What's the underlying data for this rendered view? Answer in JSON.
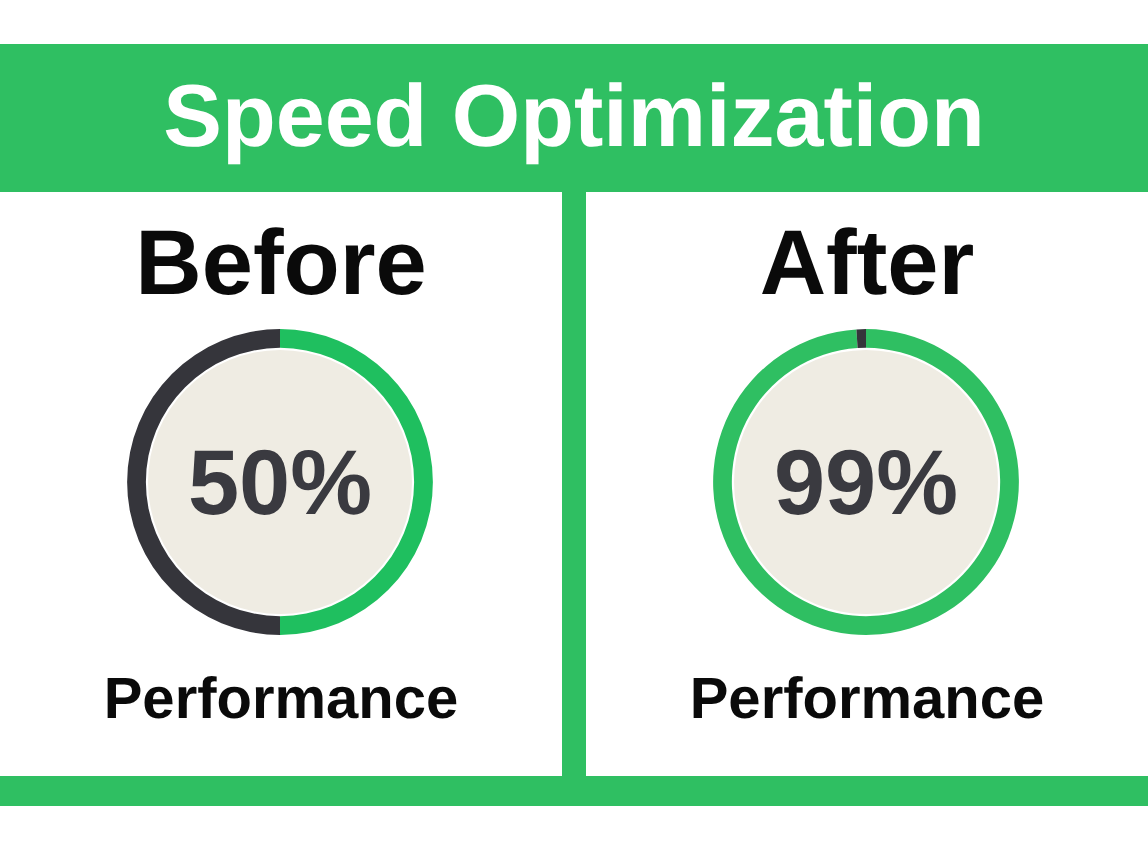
{
  "chart_data": [
    {
      "type": "other",
      "title": "Speed Optimization"
    },
    {
      "type": "donut",
      "title": "Before",
      "categories": [
        null,
        null
      ],
      "values": [
        50,
        50
      ],
      "colors": [
        "#1fbf5f",
        "#35353b"
      ],
      "value_labels": [
        "50%",
        null
      ],
      "annotations": [
        "Performance"
      ]
    },
    {
      "type": "donut",
      "title": "After",
      "categories": [
        null,
        null
      ],
      "values": [
        99,
        1
      ],
      "colors": [
        "#2fbf62",
        "#35353b"
      ],
      "value_labels": [
        "99%",
        null
      ],
      "annotations": [
        "Performance"
      ]
    }
  ]
}
